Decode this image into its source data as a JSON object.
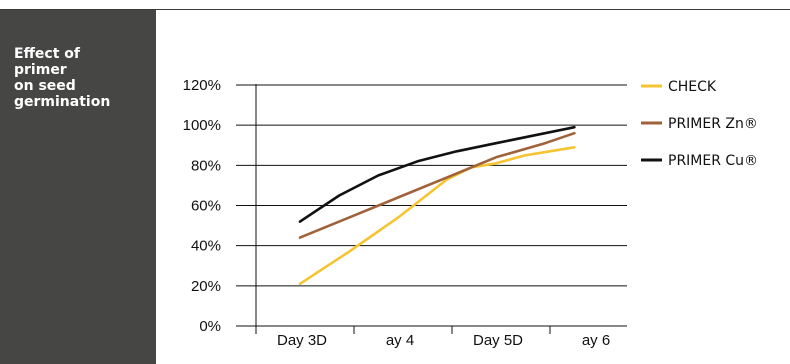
{
  "panel": {
    "title": "Effect of\nprimer\non seed\ngermination"
  },
  "colors": {
    "panel_bg": "#464645",
    "axis": "#111111",
    "grid": "#111111"
  },
  "chart_data": {
    "type": "line",
    "title": "Effect of primer on seed germination",
    "xlabel": "",
    "ylabel": "",
    "categories": [
      "Day 3D",
      "ay 4",
      "Day 5D",
      "ay 6"
    ],
    "y_ticks": [
      "0%",
      "20%",
      "40%",
      "60%",
      "80%",
      "100%",
      "120%"
    ],
    "ylim": [
      0,
      120
    ],
    "grid": "horizontal",
    "legend_position": "right",
    "series": [
      {
        "name": "CHECK",
        "color": "#f6c431",
        "points": [
          [
            0.0,
            21
          ],
          [
            0.5,
            37
          ],
          [
            1.0,
            54
          ],
          [
            1.5,
            73
          ],
          [
            1.75,
            79
          ],
          [
            2.0,
            81
          ],
          [
            2.3,
            85
          ],
          [
            2.8,
            89
          ]
        ]
      },
      {
        "name": "PRIMER  Zn®",
        "color": "#a0623a",
        "points": [
          [
            0.0,
            44
          ],
          [
            0.5,
            54
          ],
          [
            1.0,
            64
          ],
          [
            1.5,
            74
          ],
          [
            2.0,
            84
          ],
          [
            2.5,
            91
          ],
          [
            2.8,
            96
          ]
        ]
      },
      {
        "name": "PRIMER  Cu®",
        "color": "#111111",
        "points": [
          [
            0.0,
            52
          ],
          [
            0.4,
            65
          ],
          [
            0.8,
            75
          ],
          [
            1.2,
            82
          ],
          [
            1.6,
            87
          ],
          [
            2.0,
            91
          ],
          [
            2.4,
            95
          ],
          [
            2.8,
            99
          ]
        ]
      }
    ]
  }
}
